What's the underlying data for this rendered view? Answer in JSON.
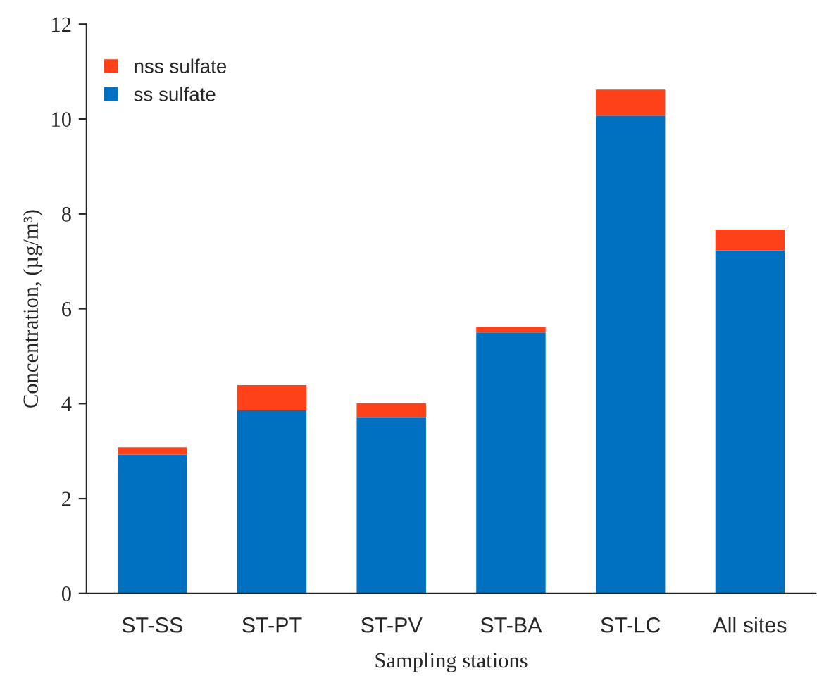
{
  "chart_data": {
    "type": "bar",
    "stacked": true,
    "xlabel": "Sampling stations",
    "ylabel": "Concentration, (µg/m³)",
    "categories": [
      "ST-SS",
      "ST-PT",
      "ST-PV",
      "ST-BA",
      "ST-LC",
      "All sites"
    ],
    "series": [
      {
        "name": "ss sulfate",
        "color": "#0070c0",
        "values": [
          2.93,
          3.86,
          3.72,
          5.5,
          10.07,
          7.23
        ]
      },
      {
        "name": "nss sulfate",
        "color": "#fe4119",
        "values": [
          0.15,
          0.53,
          0.29,
          0.12,
          0.55,
          0.44
        ]
      }
    ],
    "ylim": [
      0,
      12
    ],
    "yticks": [
      0,
      2,
      4,
      6,
      8,
      10,
      12
    ],
    "grid": false,
    "legend": "top left"
  }
}
